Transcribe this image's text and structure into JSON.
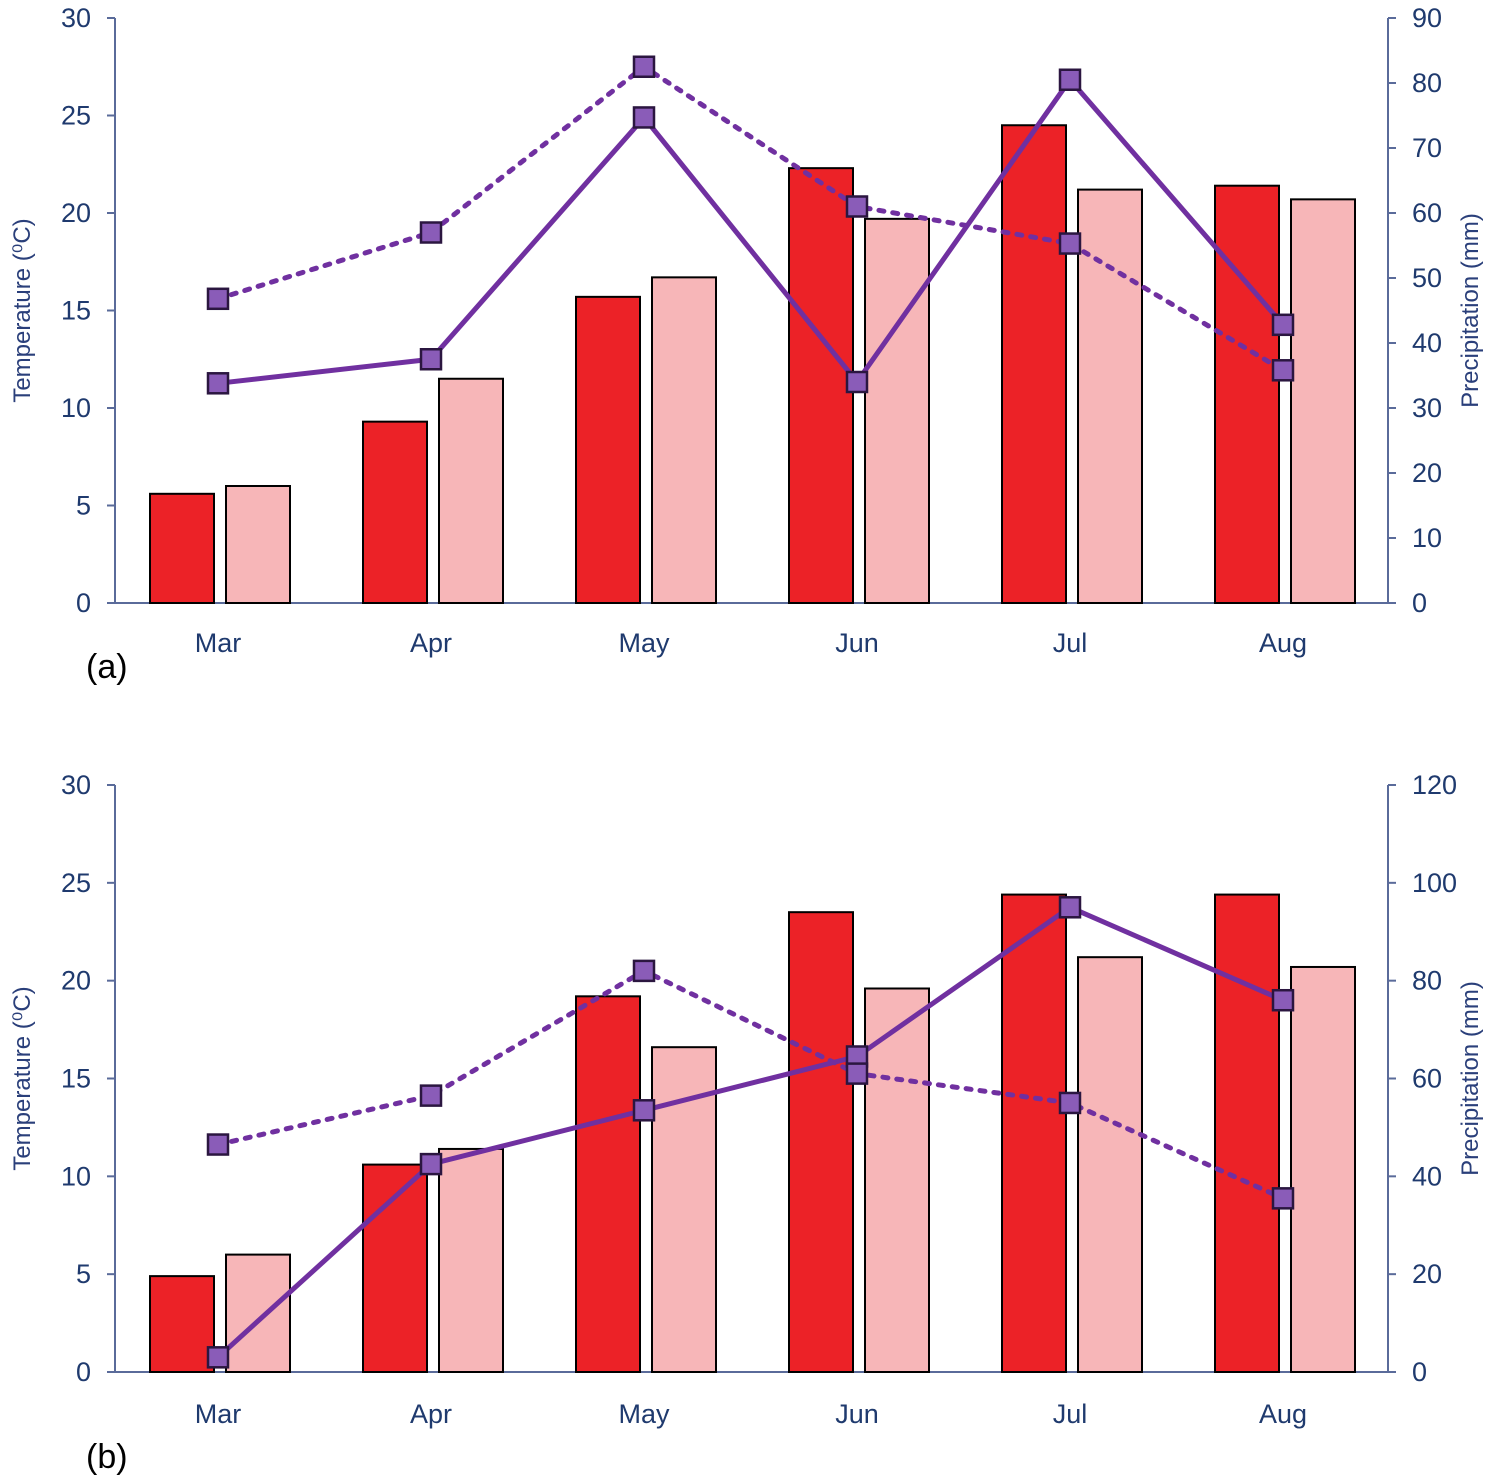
{
  "colors": {
    "bar_series_1": "#ec2227",
    "bar_series_2": "#f7b6b8",
    "line": "#7030a0",
    "marker": "#8a5cb8",
    "axis": "#5a6b9a",
    "tick_text": "#1f3a6e"
  },
  "chart_data": [
    {
      "type": "bar+line",
      "panel_label": "(a)",
      "categories": [
        "Mar",
        "Apr",
        "May",
        "Jun",
        "Jul",
        "Aug"
      ],
      "y_left": {
        "label": "Temperature (⁰C)",
        "lim": [
          0,
          30
        ],
        "ticks": [
          0,
          5,
          10,
          15,
          20,
          25,
          30
        ]
      },
      "y_right": {
        "label": "Precipitation (mm)",
        "lim": [
          0,
          90
        ],
        "ticks": [
          0,
          10,
          20,
          30,
          40,
          50,
          60,
          70,
          80,
          90
        ]
      },
      "bar_series": [
        {
          "name": "Temperature series 1",
          "axis": "left",
          "values": [
            5.6,
            9.3,
            15.7,
            22.3,
            24.5,
            21.4
          ]
        },
        {
          "name": "Temperature series 2",
          "axis": "left",
          "values": [
            6.0,
            11.5,
            16.7,
            19.7,
            21.2,
            20.7
          ]
        }
      ],
      "line_series": [
        {
          "name": "Precipitation (solid)",
          "axis": "right",
          "style": "solid",
          "values": [
            33.8,
            37.5,
            74.7,
            34.0,
            80.5,
            42.8
          ]
        },
        {
          "name": "Precipitation (dotted)",
          "axis": "right",
          "style": "dotted",
          "values": [
            46.8,
            57.0,
            82.5,
            61.0,
            55.3,
            35.8
          ]
        }
      ]
    },
    {
      "type": "bar+line",
      "panel_label": "(b)",
      "categories": [
        "Mar",
        "Apr",
        "May",
        "Jun",
        "Jul",
        "Aug"
      ],
      "y_left": {
        "label": "Temperature (⁰C)",
        "lim": [
          0,
          30
        ],
        "ticks": [
          0,
          5,
          10,
          15,
          20,
          25,
          30
        ]
      },
      "y_right": {
        "label": "Precipitation (mm)",
        "lim": [
          0,
          120
        ],
        "ticks": [
          0,
          20,
          40,
          60,
          80,
          100,
          120
        ]
      },
      "bar_series": [
        {
          "name": "Temperature series 1",
          "axis": "left",
          "values": [
            4.9,
            10.6,
            19.2,
            23.5,
            24.4,
            24.4
          ]
        },
        {
          "name": "Temperature series 2",
          "axis": "left",
          "values": [
            6.0,
            11.4,
            16.6,
            19.6,
            21.2,
            20.7
          ]
        }
      ],
      "line_series": [
        {
          "name": "Precipitation (solid)",
          "axis": "right",
          "style": "solid",
          "values": [
            3,
            42.5,
            53.5,
            64.5,
            95.0,
            76.0
          ]
        },
        {
          "name": "Precipitation (dotted)",
          "axis": "right",
          "style": "dotted",
          "values": [
            46.5,
            56.5,
            82.0,
            61.0,
            55.0,
            35.5
          ]
        }
      ]
    }
  ]
}
